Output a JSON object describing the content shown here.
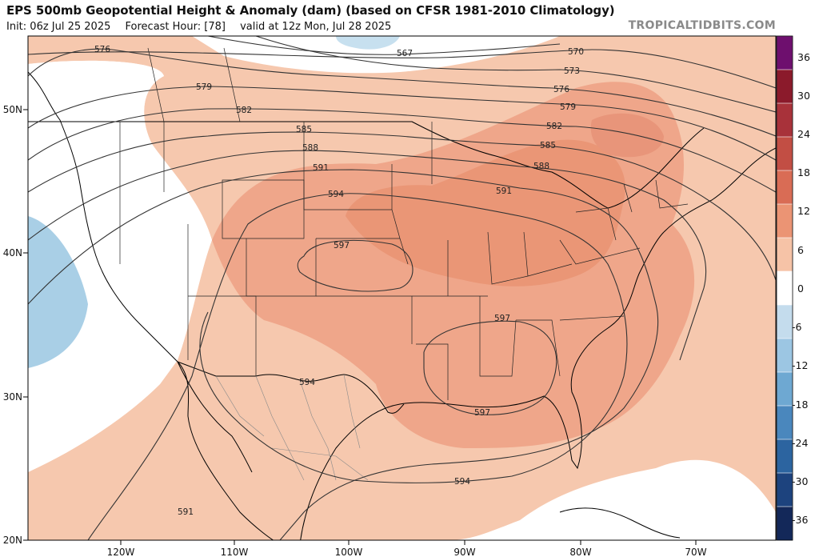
{
  "header": {
    "title": "EPS 500mb Geopotential Height & Anomaly (dam) (based on CFSR 1981-2010 Climatology)",
    "init": "Init: 06z Jul 25 2025",
    "forecast_hour": "Forecast Hour: [78]",
    "valid": "valid at 12z Mon, Jul 28 2025",
    "brand": "TROPICALTIDBITS.COM"
  },
  "map": {
    "lat_labels": [
      "50N",
      "40N",
      "30N",
      "20N"
    ],
    "lon_labels": [
      "120W",
      "110W",
      "100W",
      "90W",
      "80W",
      "70W"
    ],
    "contour_labels": [
      "576",
      "567",
      "570",
      "573",
      "579",
      "576",
      "579",
      "582",
      "582",
      "585",
      "585",
      "588",
      "588",
      "591",
      "591",
      "594",
      "597",
      "597",
      "597",
      "594",
      "594",
      "591"
    ]
  },
  "colorbar": {
    "labels": [
      "36",
      "30",
      "24",
      "18",
      "12",
      "6",
      "0",
      "-6",
      "-12",
      "-18",
      "-24",
      "-30",
      "-36"
    ],
    "colors": [
      "#6e0f6e",
      "#8b1a2b",
      "#a8323a",
      "#c24e44",
      "#d96c55",
      "#eb9474",
      "#f6c3a7",
      "#ffffff",
      "#c4dced",
      "#9cc6e3",
      "#6ea8d2",
      "#4a87bd",
      "#2c64a0",
      "#1d437e",
      "#132859"
    ]
  }
}
